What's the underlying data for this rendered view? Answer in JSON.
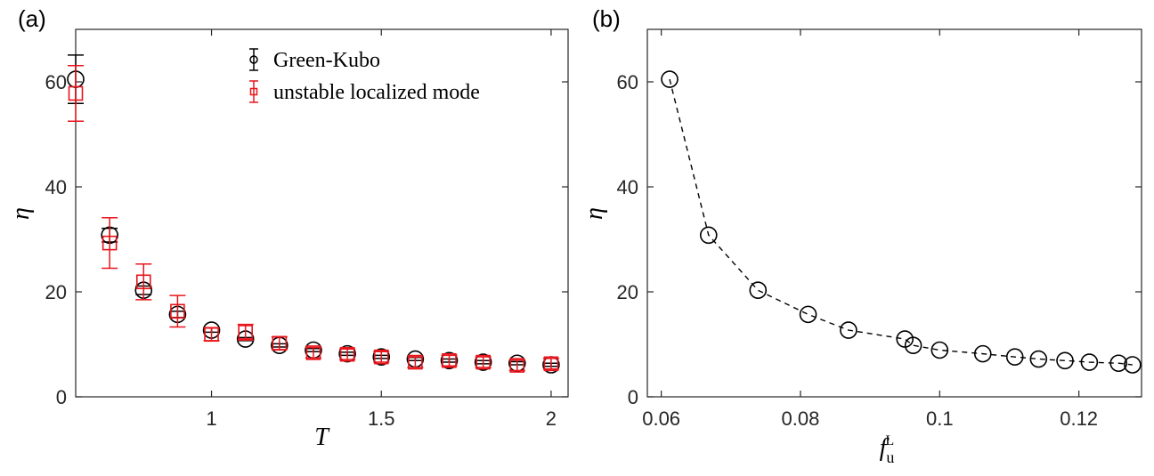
{
  "panel_labels": [
    "(a)",
    "(b)"
  ],
  "colors": {
    "green_kubo": "#000000",
    "unstable": "#e8141b",
    "axis": "#262626"
  },
  "chart_data": [
    {
      "type": "scatter",
      "panel": "(a)",
      "xlabel": "T",
      "ylabel": "η",
      "xlim": [
        0.6,
        2.05
      ],
      "ylim": [
        0,
        70
      ],
      "xticks": [
        1,
        1.5,
        2
      ],
      "yticks": [
        0,
        20,
        40,
        60
      ],
      "xtick_labels": [
        "1",
        "1.5",
        "2"
      ],
      "ytick_labels": [
        "0",
        "20",
        "40",
        "60"
      ],
      "legend_position": "top-right",
      "series": [
        {
          "name": "Green-Kubo",
          "marker": "circle",
          "color": "#000000",
          "x": [
            0.6,
            0.7,
            0.8,
            0.9,
            1.0,
            1.1,
            1.2,
            1.3,
            1.4,
            1.5,
            1.6,
            1.7,
            1.8,
            1.9,
            2.0
          ],
          "y": [
            60.5,
            30.8,
            20.3,
            15.7,
            12.7,
            11.0,
            9.8,
            8.9,
            8.2,
            7.6,
            7.2,
            6.9,
            6.6,
            6.4,
            6.1
          ],
          "err": [
            4.6,
            1.3,
            0.8,
            0.6,
            0.4,
            0.3,
            0.3,
            0.3,
            0.3,
            0.3,
            0.3,
            0.3,
            0.3,
            0.3,
            0.3
          ]
        },
        {
          "name": "unstable localized mode",
          "marker": "square",
          "color": "#e8141b",
          "x": [
            0.6,
            0.7,
            0.8,
            0.9,
            1.0,
            1.1,
            1.2,
            1.3,
            1.4,
            1.5,
            1.6,
            1.7,
            1.8,
            1.9,
            2.0
          ],
          "y": [
            57.8,
            29.3,
            21.9,
            16.3,
            11.9,
            12.3,
            10.2,
            8.4,
            8.1,
            7.6,
            6.6,
            6.9,
            6.6,
            6.0,
            6.3
          ],
          "err": [
            5.3,
            4.8,
            3.4,
            3.0,
            1.2,
            1.5,
            1.2,
            1.0,
            1.0,
            1.0,
            1.0,
            1.0,
            1.0,
            1.0,
            1.0
          ]
        }
      ]
    },
    {
      "type": "line",
      "panel": "(b)",
      "xlabel": "f",
      "xlabel_sub": "u",
      "xlabel_sup": "L",
      "ylabel": "η",
      "xlim": [
        0.058,
        0.129
      ],
      "ylim": [
        0,
        70
      ],
      "xticks": [
        0.06,
        0.08,
        0.1,
        0.12
      ],
      "yticks": [
        0,
        20,
        40,
        60
      ],
      "xtick_labels": [
        "0.06",
        "0.08",
        "0.1",
        "0.12"
      ],
      "ytick_labels": [
        "0",
        "20",
        "40",
        "60"
      ],
      "series": [
        {
          "marker": "circle",
          "line": "dashed",
          "color": "#000000",
          "x": [
            0.0612,
            0.0668,
            0.0739,
            0.0811,
            0.0869,
            0.095,
            0.0962,
            0.1,
            0.1062,
            0.1108,
            0.1142,
            0.118,
            0.1215,
            0.1257,
            0.1277
          ],
          "y": [
            60.5,
            30.8,
            20.3,
            15.7,
            12.7,
            11.0,
            9.8,
            8.9,
            8.2,
            7.6,
            7.2,
            6.9,
            6.6,
            6.4,
            6.1
          ]
        }
      ]
    }
  ]
}
